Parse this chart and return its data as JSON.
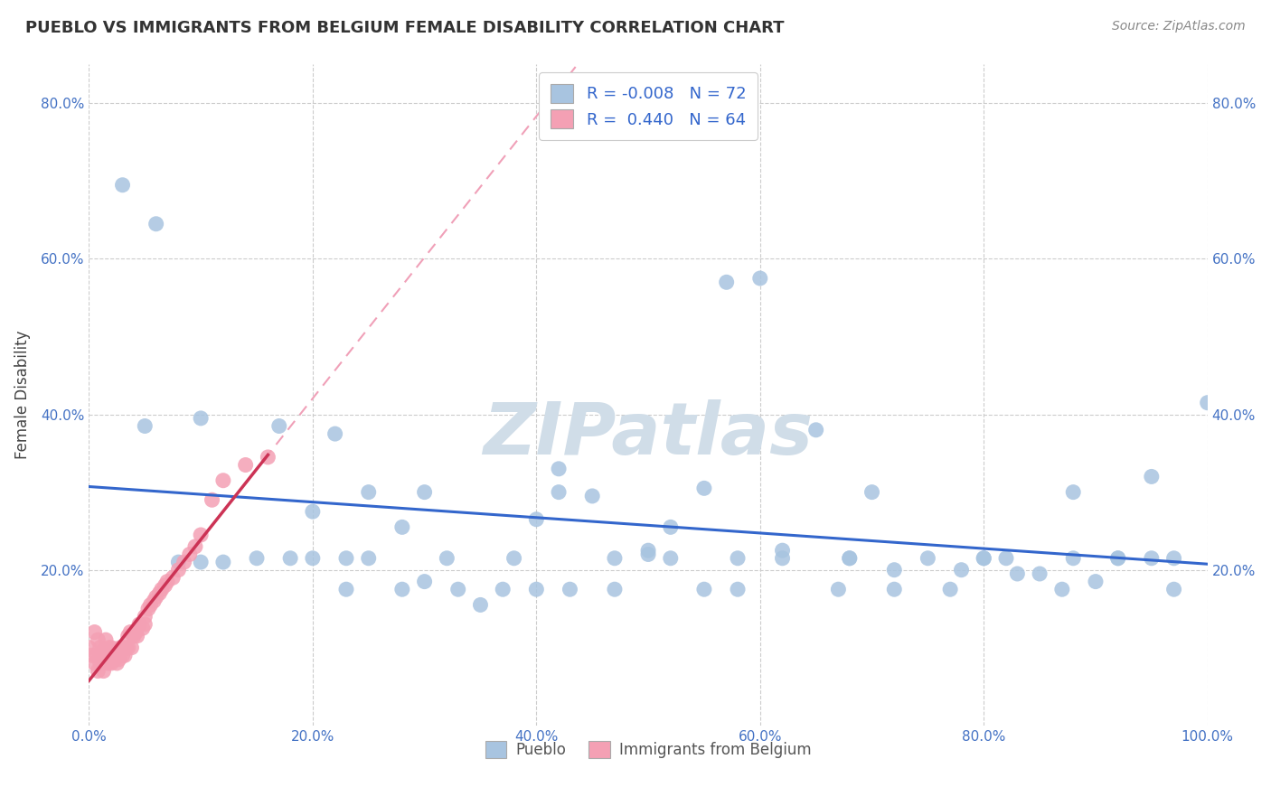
{
  "title": "PUEBLO VS IMMIGRANTS FROM BELGIUM FEMALE DISABILITY CORRELATION CHART",
  "source": "Source: ZipAtlas.com",
  "xlabel": "",
  "ylabel": "Female Disability",
  "xlim": [
    0,
    1.0
  ],
  "ylim": [
    0,
    0.85
  ],
  "xticks": [
    0.0,
    0.2,
    0.4,
    0.6,
    0.8,
    1.0
  ],
  "xticklabels": [
    "0.0%",
    "20.0%",
    "40.0%",
    "60.0%",
    "80.0%",
    "100.0%"
  ],
  "yticks": [
    0.2,
    0.4,
    0.6,
    0.8
  ],
  "yticklabels": [
    "20.0%",
    "40.0%",
    "60.0%",
    "80.0%"
  ],
  "legend_R1": "-0.008",
  "legend_N1": "72",
  "legend_R2": "0.440",
  "legend_N2": "64",
  "pueblo_color": "#a8c4e0",
  "belgium_color": "#f4a0b4",
  "pueblo_line_color": "#3366cc",
  "belgium_line_solid_color": "#cc3355",
  "belgium_line_dash_color": "#f0a0b8",
  "watermark_color": "#d0dde8",
  "pueblo_x": [
    0.05,
    0.1,
    0.17,
    0.2,
    0.22,
    0.23,
    0.25,
    0.28,
    0.3,
    0.32,
    0.35,
    0.38,
    0.4,
    0.42,
    0.45,
    0.47,
    0.5,
    0.52,
    0.55,
    0.57,
    0.6,
    0.62,
    0.65,
    0.68,
    0.7,
    0.72,
    0.75,
    0.78,
    0.8,
    0.83,
    0.85,
    0.88,
    0.9,
    0.92,
    0.95,
    0.97,
    1.0,
    0.03,
    0.06,
    0.08,
    0.1,
    0.12,
    0.15,
    0.18,
    0.2,
    0.23,
    0.25,
    0.28,
    0.3,
    0.33,
    0.37,
    0.4,
    0.43,
    0.47,
    0.52,
    0.55,
    0.58,
    0.62,
    0.67,
    0.72,
    0.77,
    0.82,
    0.87,
    0.92,
    0.97,
    0.42,
    0.5,
    0.58,
    0.68,
    0.8,
    0.88,
    0.95
  ],
  "pueblo_y": [
    0.385,
    0.395,
    0.385,
    0.275,
    0.375,
    0.215,
    0.3,
    0.255,
    0.3,
    0.215,
    0.155,
    0.215,
    0.265,
    0.3,
    0.295,
    0.215,
    0.225,
    0.255,
    0.305,
    0.57,
    0.575,
    0.225,
    0.38,
    0.215,
    0.3,
    0.2,
    0.215,
    0.2,
    0.215,
    0.195,
    0.195,
    0.215,
    0.185,
    0.215,
    0.215,
    0.215,
    0.415,
    0.695,
    0.645,
    0.21,
    0.21,
    0.21,
    0.215,
    0.215,
    0.215,
    0.175,
    0.215,
    0.175,
    0.185,
    0.175,
    0.175,
    0.175,
    0.175,
    0.175,
    0.215,
    0.175,
    0.175,
    0.215,
    0.175,
    0.175,
    0.175,
    0.215,
    0.175,
    0.215,
    0.175,
    0.33,
    0.22,
    0.215,
    0.215,
    0.215,
    0.3,
    0.32
  ],
  "belgium_x": [
    0.0,
    0.003,
    0.005,
    0.005,
    0.007,
    0.008,
    0.008,
    0.01,
    0.01,
    0.01,
    0.012,
    0.012,
    0.013,
    0.015,
    0.015,
    0.015,
    0.017,
    0.017,
    0.018,
    0.018,
    0.02,
    0.02,
    0.02,
    0.022,
    0.022,
    0.023,
    0.025,
    0.025,
    0.027,
    0.027,
    0.028,
    0.03,
    0.03,
    0.032,
    0.033,
    0.035,
    0.035,
    0.037,
    0.038,
    0.04,
    0.042,
    0.043,
    0.045,
    0.048,
    0.05,
    0.05,
    0.053,
    0.055,
    0.058,
    0.06,
    0.063,
    0.065,
    0.068,
    0.07,
    0.075,
    0.08,
    0.085,
    0.09,
    0.095,
    0.1,
    0.11,
    0.12,
    0.14,
    0.16
  ],
  "belgium_y": [
    0.1,
    0.09,
    0.08,
    0.12,
    0.09,
    0.07,
    0.11,
    0.08,
    0.09,
    0.1,
    0.085,
    0.095,
    0.07,
    0.085,
    0.095,
    0.11,
    0.08,
    0.095,
    0.085,
    0.1,
    0.08,
    0.09,
    0.1,
    0.085,
    0.095,
    0.085,
    0.08,
    0.09,
    0.085,
    0.095,
    0.1,
    0.09,
    0.1,
    0.09,
    0.1,
    0.1,
    0.115,
    0.12,
    0.1,
    0.115,
    0.12,
    0.115,
    0.13,
    0.125,
    0.13,
    0.14,
    0.15,
    0.155,
    0.16,
    0.165,
    0.17,
    0.175,
    0.18,
    0.185,
    0.19,
    0.2,
    0.21,
    0.22,
    0.23,
    0.245,
    0.29,
    0.315,
    0.335,
    0.345
  ]
}
